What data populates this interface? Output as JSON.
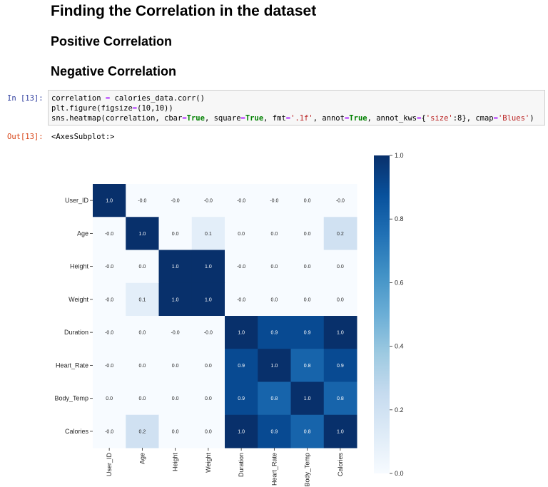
{
  "notebook": {
    "heading": "Finding the Correlation in the dataset",
    "subheading_positive": "Positive Correlation",
    "subheading_negative": "Negative Correlation",
    "cell": {
      "in_prompt": "In [13]:",
      "out_prompt": "Out[13]:",
      "code_lines": [
        "correlation = calories_data.corr()",
        "plt.figure(figsize=(10,10))",
        "sns.heatmap(correlation, cbar=True, square=True, fmt='.1f', annot=True, annot_kws={'size':8}, cmap='Blues')"
      ],
      "output_text": "<AxesSubplot:>"
    }
  },
  "chart_data": {
    "type": "heatmap",
    "labels": [
      "User_ID",
      "Age",
      "Height",
      "Weight",
      "Duration",
      "Heart_Rate",
      "Body_Temp",
      "Calories"
    ],
    "values": [
      [
        1.0,
        -0.0,
        -0.0,
        -0.0,
        -0.0,
        -0.0,
        0.0,
        -0.0
      ],
      [
        -0.0,
        1.0,
        0.0,
        0.1,
        0.0,
        0.0,
        0.0,
        0.2
      ],
      [
        -0.0,
        0.0,
        1.0,
        1.0,
        -0.0,
        0.0,
        0.0,
        0.0
      ],
      [
        -0.0,
        0.1,
        1.0,
        1.0,
        -0.0,
        0.0,
        0.0,
        0.0
      ],
      [
        -0.0,
        0.0,
        -0.0,
        -0.0,
        1.0,
        0.9,
        0.9,
        1.0
      ],
      [
        -0.0,
        0.0,
        0.0,
        0.0,
        0.9,
        1.0,
        0.8,
        0.9
      ],
      [
        0.0,
        0.0,
        0.0,
        0.0,
        0.9,
        0.8,
        1.0,
        0.8
      ],
      [
        -0.0,
        0.2,
        0.0,
        0.0,
        1.0,
        0.9,
        0.8,
        1.0
      ]
    ],
    "annotations": [
      [
        "1.0",
        "-0.0",
        "-0.0",
        "-0.0",
        "-0.0",
        "-0.0",
        "0.0",
        "-0.0"
      ],
      [
        "-0.0",
        "1.0",
        "0.0",
        "0.1",
        "0.0",
        "0.0",
        "0.0",
        "0.2"
      ],
      [
        "-0.0",
        "0.0",
        "1.0",
        "1.0",
        "-0.0",
        "0.0",
        "0.0",
        "0.0"
      ],
      [
        "-0.0",
        "0.1",
        "1.0",
        "1.0",
        "-0.0",
        "0.0",
        "0.0",
        "0.0"
      ],
      [
        "-0.0",
        "0.0",
        "-0.0",
        "-0.0",
        "1.0",
        "0.9",
        "0.9",
        "1.0"
      ],
      [
        "-0.0",
        "0.0",
        "0.0",
        "0.0",
        "0.9",
        "1.0",
        "0.8",
        "0.9"
      ],
      [
        "0.0",
        "0.0",
        "0.0",
        "0.0",
        "0.9",
        "0.8",
        "1.0",
        "0.8"
      ],
      [
        "-0.0",
        "0.2",
        "0.0",
        "0.0",
        "1.0",
        "0.9",
        "0.8",
        "1.0"
      ]
    ],
    "cmap": "Blues",
    "colorbar": {
      "ticks": [
        0.0,
        0.2,
        0.4,
        0.6,
        0.8,
        1.0
      ],
      "tick_labels": [
        "0.0",
        "0.2",
        "0.4",
        "0.6",
        "0.8",
        "1.0"
      ],
      "range": [
        0.0,
        1.0
      ]
    },
    "colors": {
      "low": "#f7fbff",
      "high": "#08306b"
    }
  }
}
